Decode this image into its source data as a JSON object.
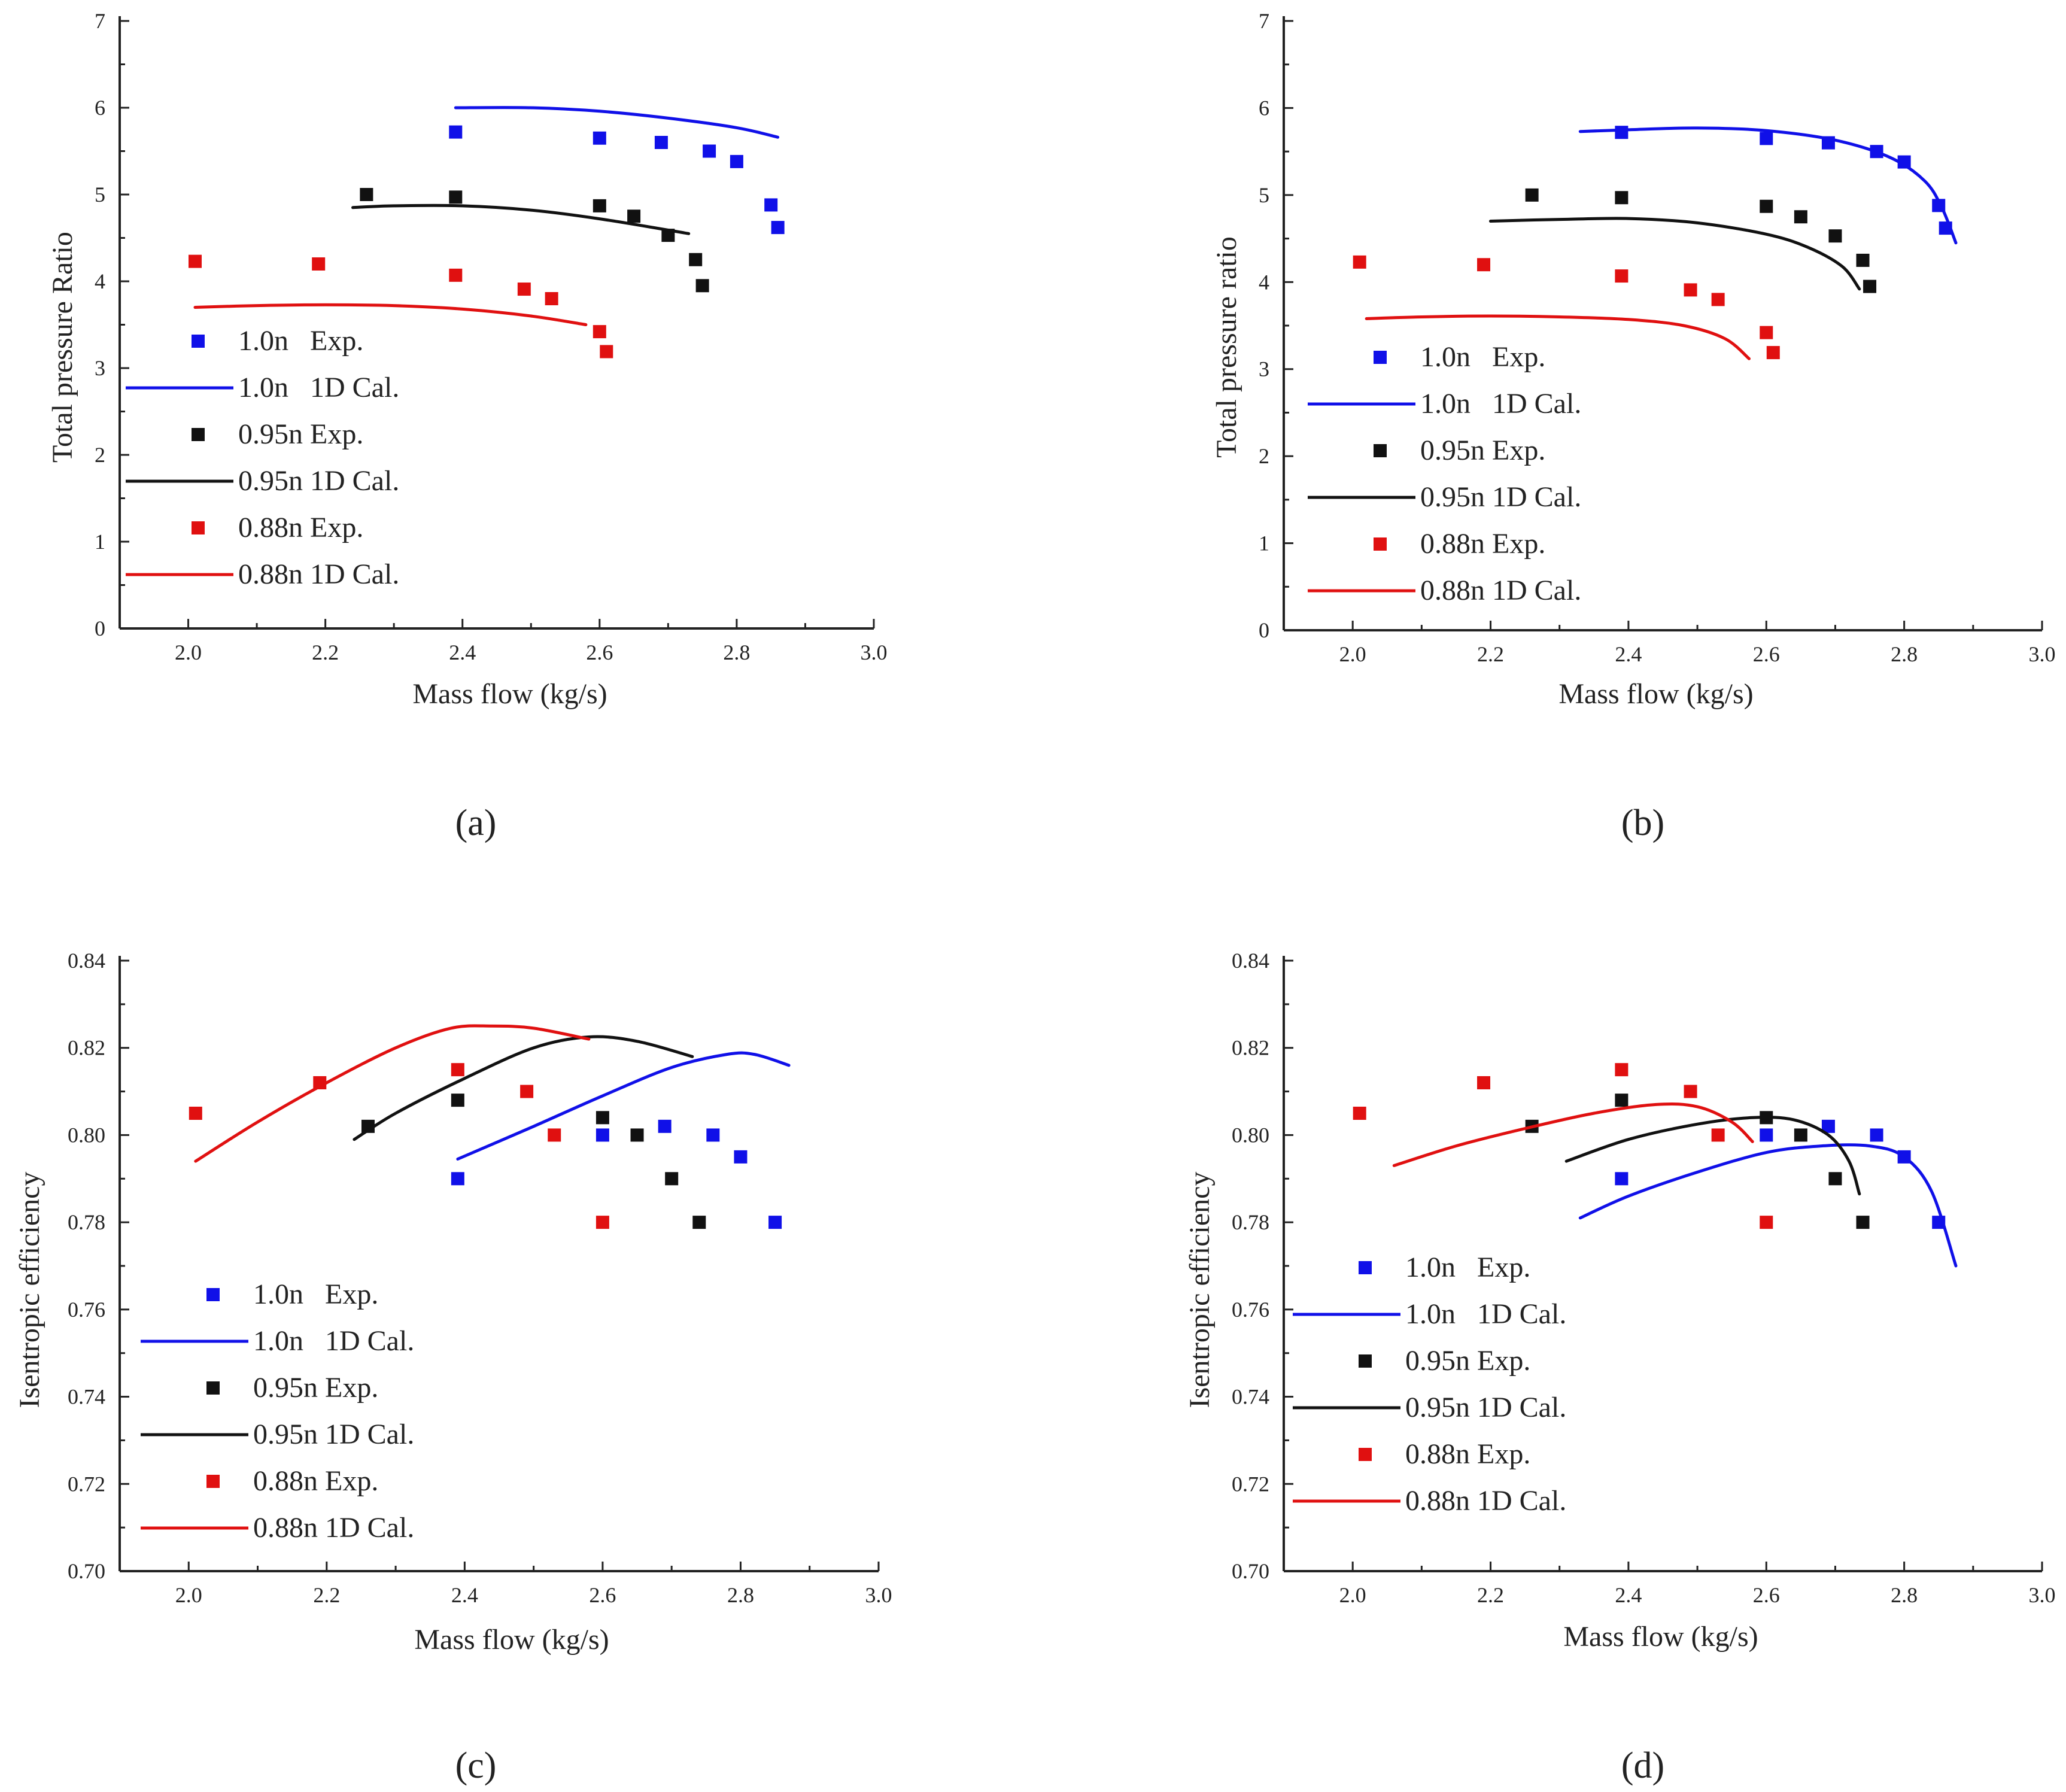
{
  "colors": {
    "s1": "#1010e8",
    "s2": "#111111",
    "s3": "#e01010"
  },
  "chart_data": [
    {
      "panel": "a",
      "panel_label": "(a)",
      "type": "line+scatter",
      "xlabel": "Mass flow (kg/s)",
      "ylabel": "Total pressure Ratio",
      "xlim": [
        1.9,
        3.0
      ],
      "ylim": [
        0,
        7
      ],
      "xticks": [
        "2.0",
        "2.2",
        "2.4",
        "2.6",
        "2.8",
        "3.0"
      ],
      "yticks": [
        "0",
        "1",
        "2",
        "3",
        "4",
        "5",
        "6",
        "7"
      ],
      "legend": [
        "1.0n   Exp.",
        "1.0n   1D Cal.",
        "0.95n Exp.",
        "0.95n 1D Cal.",
        "0.88n Exp.",
        "0.88n 1D Cal."
      ],
      "series": [
        {
          "name": "1.0n Exp.",
          "kind": "scatter",
          "color": "s1",
          "x": [
            2.39,
            2.6,
            2.69,
            2.76,
            2.8,
            2.85,
            2.86
          ],
          "y": [
            5.72,
            5.65,
            5.6,
            5.5,
            5.38,
            4.88,
            4.62
          ]
        },
        {
          "name": "1.0n 1D Cal.",
          "kind": "line",
          "color": "s1",
          "x": [
            2.39,
            2.5,
            2.6,
            2.7,
            2.8,
            2.86
          ],
          "y": [
            6.0,
            6.0,
            5.96,
            5.88,
            5.77,
            5.66
          ]
        },
        {
          "name": "0.95n Exp.",
          "kind": "scatter",
          "color": "s2",
          "x": [
            2.26,
            2.39,
            2.6,
            2.65,
            2.7,
            2.74,
            2.75
          ],
          "y": [
            5.0,
            4.97,
            4.87,
            4.75,
            4.53,
            4.25,
            3.95
          ]
        },
        {
          "name": "0.95n 1D Cal.",
          "kind": "line",
          "color": "s2",
          "x": [
            2.24,
            2.3,
            2.4,
            2.5,
            2.6,
            2.73
          ],
          "y": [
            4.85,
            4.87,
            4.87,
            4.82,
            4.72,
            4.55
          ]
        },
        {
          "name": "0.88n Exp.",
          "kind": "scatter",
          "color": "s3",
          "x": [
            2.01,
            2.19,
            2.39,
            2.49,
            2.53,
            2.6,
            2.61
          ],
          "y": [
            4.23,
            4.2,
            4.07,
            3.91,
            3.8,
            3.42,
            3.19
          ]
        },
        {
          "name": "0.88n 1D Cal.",
          "kind": "line",
          "color": "s3",
          "x": [
            2.01,
            2.1,
            2.2,
            2.3,
            2.4,
            2.5,
            2.58
          ],
          "y": [
            3.7,
            3.72,
            3.73,
            3.72,
            3.68,
            3.6,
            3.5
          ]
        }
      ]
    },
    {
      "panel": "b",
      "panel_label": "(b)",
      "type": "line+scatter",
      "xlabel": "Mass flow (kg/s)",
      "ylabel": "Total pressure ratio",
      "xlim": [
        1.9,
        3.0
      ],
      "ylim": [
        0,
        7
      ],
      "xticks": [
        "2.0",
        "2.2",
        "2.4",
        "2.6",
        "2.8",
        "3.0"
      ],
      "yticks": [
        "0",
        "1",
        "2",
        "3",
        "4",
        "5",
        "6",
        "7"
      ],
      "legend": [
        "1.0n   Exp.",
        "1.0n   1D Cal.",
        "0.95n Exp.",
        "0.95n 1D Cal.",
        "0.88n Exp.",
        "0.88n 1D Cal."
      ],
      "series": [
        {
          "name": "1.0n Exp.",
          "kind": "scatter",
          "color": "s1",
          "x": [
            2.39,
            2.6,
            2.69,
            2.76,
            2.8,
            2.85,
            2.86
          ],
          "y": [
            5.72,
            5.65,
            5.6,
            5.5,
            5.38,
            4.88,
            4.62
          ]
        },
        {
          "name": "1.0n 1D Cal.",
          "kind": "line",
          "color": "s1",
          "x": [
            2.33,
            2.4,
            2.5,
            2.6,
            2.7,
            2.78,
            2.83,
            2.855,
            2.875
          ],
          "y": [
            5.73,
            5.75,
            5.77,
            5.74,
            5.63,
            5.43,
            5.16,
            4.85,
            4.45
          ]
        },
        {
          "name": "0.95n Exp.",
          "kind": "scatter",
          "color": "s2",
          "x": [
            2.26,
            2.39,
            2.6,
            2.65,
            2.7,
            2.74,
            2.75
          ],
          "y": [
            5.0,
            4.97,
            4.87,
            4.75,
            4.53,
            4.25,
            3.95
          ]
        },
        {
          "name": "0.95n 1D Cal.",
          "kind": "line",
          "color": "s2",
          "x": [
            2.2,
            2.3,
            2.4,
            2.5,
            2.6,
            2.66,
            2.71,
            2.735
          ],
          "y": [
            4.7,
            4.72,
            4.73,
            4.68,
            4.55,
            4.4,
            4.18,
            3.92
          ]
        },
        {
          "name": "0.88n Exp.",
          "kind": "scatter",
          "color": "s3",
          "x": [
            2.01,
            2.19,
            2.39,
            2.49,
            2.53,
            2.6,
            2.61
          ],
          "y": [
            4.23,
            4.2,
            4.07,
            3.91,
            3.8,
            3.42,
            3.19
          ]
        },
        {
          "name": "0.88n 1D Cal.",
          "kind": "line",
          "color": "s3",
          "x": [
            2.02,
            2.1,
            2.2,
            2.3,
            2.4,
            2.48,
            2.54,
            2.575
          ],
          "y": [
            3.58,
            3.6,
            3.61,
            3.6,
            3.57,
            3.5,
            3.35,
            3.12
          ]
        }
      ]
    },
    {
      "panel": "c",
      "panel_label": "(c)",
      "type": "line+scatter",
      "xlabel": "Mass flow (kg/s)",
      "ylabel": "Isentropic efficiency",
      "xlim": [
        1.9,
        3.0
      ],
      "ylim": [
        0.7,
        0.84
      ],
      "xticks": [
        "2.0",
        "2.2",
        "2.4",
        "2.6",
        "2.8",
        "3.0"
      ],
      "yticks": [
        "0.70",
        "0.72",
        "0.74",
        "0.76",
        "0.78",
        "0.80",
        "0.82",
        "0.84"
      ],
      "legend": [
        "1.0n   Exp.",
        "1.0n   1D Cal.",
        "0.95n Exp.",
        "0.95n 1D Cal.",
        "0.88n Exp.",
        "0.88n 1D Cal."
      ],
      "series": [
        {
          "name": "1.0n Exp.",
          "kind": "scatter",
          "color": "s1",
          "x": [
            2.39,
            2.6,
            2.69,
            2.76,
            2.8,
            2.85
          ],
          "y": [
            0.79,
            0.8,
            0.802,
            0.8,
            0.795,
            0.78
          ]
        },
        {
          "name": "1.0n 1D Cal.",
          "kind": "line",
          "color": "s1",
          "x": [
            2.39,
            2.5,
            2.6,
            2.7,
            2.78,
            2.82,
            2.87
          ],
          "y": [
            0.7945,
            0.802,
            0.809,
            0.8155,
            0.8185,
            0.8185,
            0.816
          ]
        },
        {
          "name": "0.95n Exp.",
          "kind": "scatter",
          "color": "s2",
          "x": [
            2.26,
            2.39,
            2.6,
            2.65,
            2.7,
            2.74
          ],
          "y": [
            0.802,
            0.808,
            0.804,
            0.8,
            0.79,
            0.78
          ]
        },
        {
          "name": "0.95n 1D Cal.",
          "kind": "line",
          "color": "s2",
          "x": [
            2.24,
            2.3,
            2.4,
            2.5,
            2.58,
            2.65,
            2.73
          ],
          "y": [
            0.799,
            0.805,
            0.813,
            0.82,
            0.8225,
            0.8215,
            0.818
          ]
        },
        {
          "name": "0.88n Exp.",
          "kind": "scatter",
          "color": "s3",
          "x": [
            2.01,
            2.19,
            2.39,
            2.49,
            2.53,
            2.6
          ],
          "y": [
            0.805,
            0.812,
            0.815,
            0.81,
            0.8,
            0.78
          ]
        },
        {
          "name": "0.88n 1D Cal.",
          "kind": "line",
          "color": "s3",
          "x": [
            2.01,
            2.1,
            2.2,
            2.3,
            2.38,
            2.44,
            2.5,
            2.58
          ],
          "y": [
            0.794,
            0.803,
            0.812,
            0.82,
            0.8245,
            0.825,
            0.8245,
            0.822
          ]
        }
      ]
    },
    {
      "panel": "d",
      "panel_label": "(d)",
      "type": "line+scatter",
      "xlabel": "Mass flow (kg/s)",
      "ylabel": "Isentropic efficiency",
      "xlim": [
        1.9,
        3.0
      ],
      "ylim": [
        0.7,
        0.84
      ],
      "xticks": [
        "2.0",
        "2.2",
        "2.4",
        "2.6",
        "2.8",
        "3.0"
      ],
      "yticks": [
        "0.70",
        "0.72",
        "0.74",
        "0.76",
        "0.78",
        "0.80",
        "0.82",
        "0.84"
      ],
      "legend": [
        "1.0n   Exp.",
        "1.0n   1D Cal.",
        "0.95n Exp.",
        "0.95n 1D Cal.",
        "0.88n Exp.",
        "0.88n 1D Cal."
      ],
      "series": [
        {
          "name": "1.0n Exp.",
          "kind": "scatter",
          "color": "s1",
          "x": [
            2.39,
            2.6,
            2.69,
            2.76,
            2.8,
            2.85
          ],
          "y": [
            0.79,
            0.8,
            0.802,
            0.8,
            0.795,
            0.78
          ]
        },
        {
          "name": "1.0n 1D Cal.",
          "kind": "line",
          "color": "s1",
          "x": [
            2.33,
            2.4,
            2.5,
            2.6,
            2.68,
            2.75,
            2.8,
            2.84,
            2.875
          ],
          "y": [
            0.781,
            0.786,
            0.7915,
            0.796,
            0.7975,
            0.7975,
            0.795,
            0.787,
            0.77
          ]
        },
        {
          "name": "0.95n Exp.",
          "kind": "scatter",
          "color": "s2",
          "x": [
            2.26,
            2.39,
            2.6,
            2.65,
            2.7,
            2.74
          ],
          "y": [
            0.802,
            0.808,
            0.804,
            0.8,
            0.79,
            0.78
          ]
        },
        {
          "name": "0.95n 1D Cal.",
          "kind": "line",
          "color": "s2",
          "x": [
            2.31,
            2.4,
            2.5,
            2.58,
            2.64,
            2.69,
            2.72,
            2.735
          ],
          "y": [
            0.794,
            0.799,
            0.8025,
            0.804,
            0.8035,
            0.8,
            0.794,
            0.7865
          ]
        },
        {
          "name": "0.88n Exp.",
          "kind": "scatter",
          "color": "s3",
          "x": [
            2.01,
            2.19,
            2.39,
            2.49,
            2.53,
            2.6
          ],
          "y": [
            0.805,
            0.812,
            0.815,
            0.81,
            0.8,
            0.78
          ]
        },
        {
          "name": "0.88n 1D Cal.",
          "kind": "line",
          "color": "s3",
          "x": [
            2.06,
            2.15,
            2.25,
            2.35,
            2.44,
            2.5,
            2.55,
            2.58
          ],
          "y": [
            0.793,
            0.7975,
            0.8015,
            0.805,
            0.807,
            0.8065,
            0.803,
            0.7985
          ]
        }
      ]
    }
  ]
}
